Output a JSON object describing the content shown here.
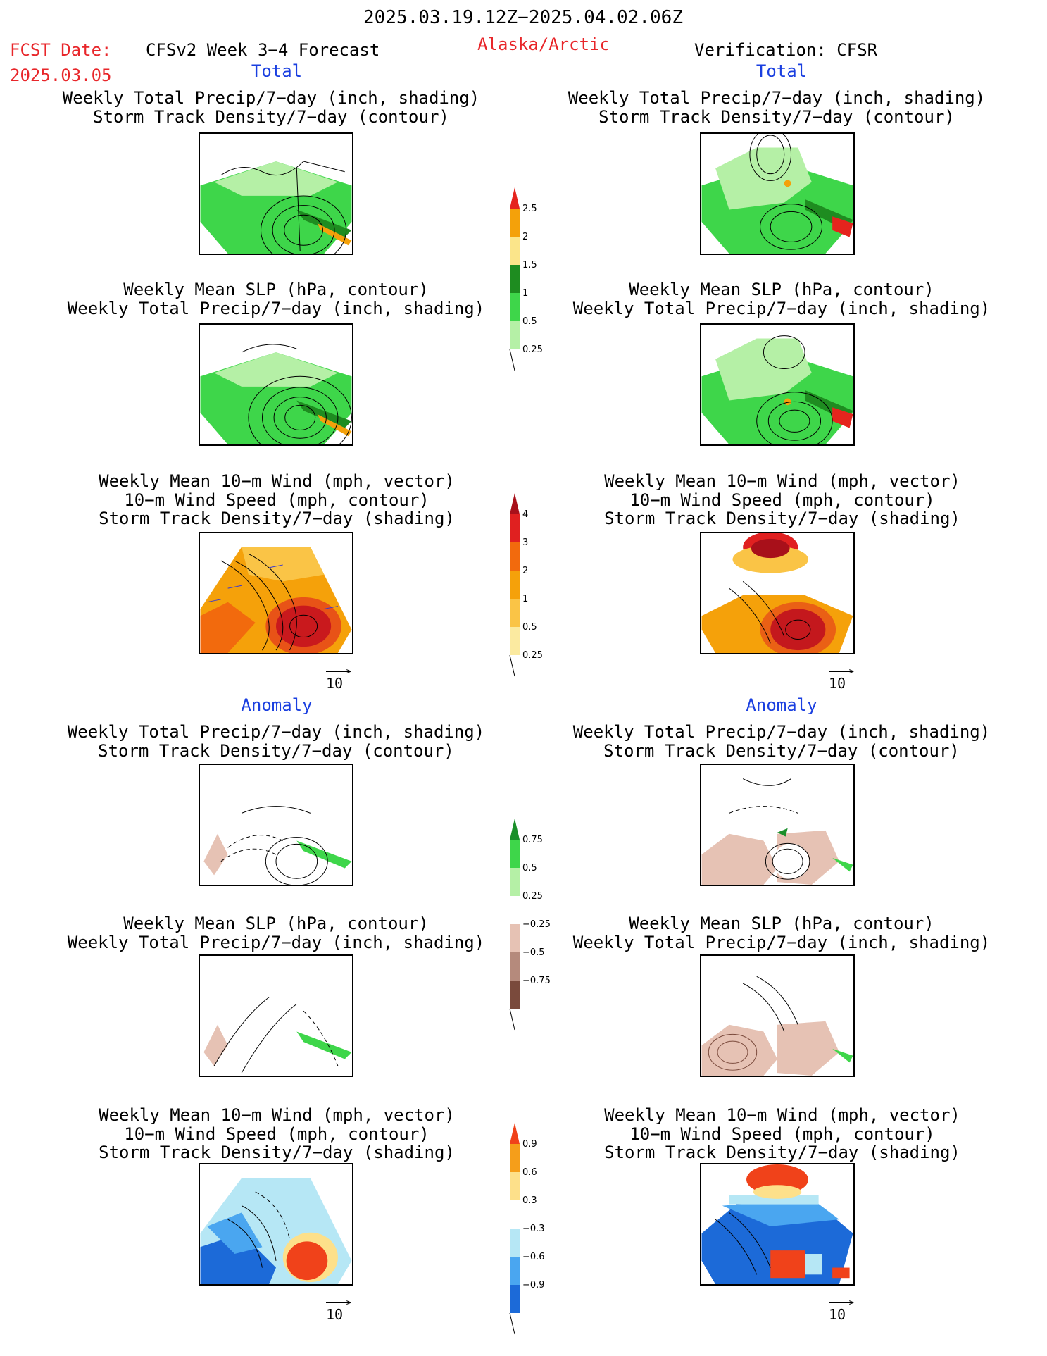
{
  "header": {
    "period": "2025.03.19.12Z−2025.04.02.06Z",
    "fcst_label": "FCST Date:",
    "fcst_date": "2025.03.05",
    "model": "CFSv2 Week 3−4 Forecast",
    "region": "Alaska/Arctic",
    "verification": "Verification: CFSR"
  },
  "sections": {
    "total": "Total",
    "anomaly": "Anomaly"
  },
  "panel_titles": {
    "precip_storm": "Weekly Total Precip/7−day (inch, shading)\nStorm Track Density/7−day (contour)",
    "slp_precip": "Weekly Mean SLP (hPa, contour)\nWeekly Total Precip/7−day (inch, shading)",
    "wind_storm": "Weekly Mean 10−m Wind (mph, vector)\n10−m Wind Speed (mph, contour)\nStorm Track Density/7−day (shading)"
  },
  "vector_ref": "10",
  "colors": {
    "title_red": "#e8262a",
    "label_blue": "#1a3fe0"
  },
  "chart_data": [
    {
      "type": "heatmap",
      "name": "precip_total_scale",
      "ticks": [
        "2.5",
        "2",
        "1.5",
        "1",
        "0.5",
        "0.25"
      ],
      "colors": [
        "#e5241d",
        "#f4a10a",
        "#fbe58a",
        "#1e8c20",
        "#3ed64a",
        "#b5f0a6"
      ]
    },
    {
      "type": "heatmap",
      "name": "storm_density_total_scale",
      "ticks": [
        "4",
        "3",
        "2",
        "1",
        "0.5",
        "0.25"
      ],
      "colors": [
        "#a8101a",
        "#e02020",
        "#f26a0d",
        "#f5a10a",
        "#fac446",
        "#fbeaa0"
      ]
    },
    {
      "type": "heatmap",
      "name": "precip_anomaly_scale",
      "ticks": [
        "0.75",
        "0.5",
        "0.25",
        "−0.25",
        "−0.5",
        "−0.75"
      ],
      "colors": [
        "#1a8f2a",
        "#3ed64a",
        "#b5f0a6",
        "#ffffff",
        "#e6c2b4",
        "#b58a7c",
        "#7a4a3c"
      ]
    },
    {
      "type": "heatmap",
      "name": "storm_density_anomaly_scale",
      "ticks": [
        "0.9",
        "0.6",
        "0.3",
        "−0.3",
        "−0.6",
        "−0.9"
      ],
      "colors": [
        "#f0421a",
        "#f59e1a",
        "#fde08a",
        "#ffffff",
        "#b6e7f5",
        "#4aa6f0",
        "#1c6ad8"
      ]
    }
  ]
}
